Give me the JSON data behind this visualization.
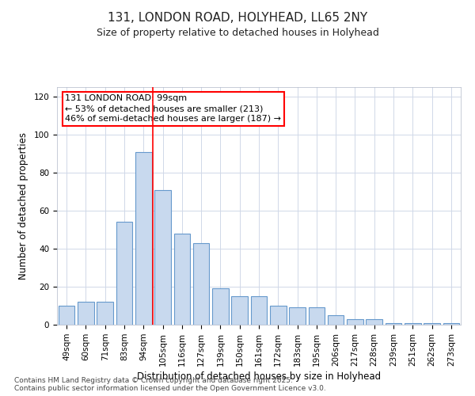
{
  "title": "131, LONDON ROAD, HOLYHEAD, LL65 2NY",
  "subtitle": "Size of property relative to detached houses in Holyhead",
  "xlabel": "Distribution of detached houses by size in Holyhead",
  "ylabel": "Number of detached properties",
  "categories": [
    "49sqm",
    "60sqm",
    "71sqm",
    "83sqm",
    "94sqm",
    "105sqm",
    "116sqm",
    "127sqm",
    "139sqm",
    "150sqm",
    "161sqm",
    "172sqm",
    "183sqm",
    "195sqm",
    "206sqm",
    "217sqm",
    "228sqm",
    "239sqm",
    "251sqm",
    "262sqm",
    "273sqm"
  ],
  "values": [
    10,
    12,
    12,
    54,
    91,
    71,
    48,
    43,
    19,
    15,
    15,
    10,
    9,
    9,
    5,
    3,
    3,
    1,
    1,
    1,
    1
  ],
  "bar_color": "#c8d9ee",
  "bar_edge_color": "#6699cc",
  "grid_color": "#d0d8e8",
  "background_color": "#ffffff",
  "annotation_line1": "131 LONDON ROAD: 99sqm",
  "annotation_line2": "← 53% of detached houses are smaller (213)",
  "annotation_line3": "46% of semi-detached houses are larger (187) →",
  "red_line_x": 4.5,
  "ylim": [
    0,
    125
  ],
  "yticks": [
    0,
    20,
    40,
    60,
    80,
    100,
    120
  ],
  "footer_line1": "Contains HM Land Registry data © Crown copyright and database right 2025.",
  "footer_line2": "Contains public sector information licensed under the Open Government Licence v3.0.",
  "title_fontsize": 11,
  "subtitle_fontsize": 9,
  "axis_label_fontsize": 8.5,
  "tick_fontsize": 7.5,
  "annotation_fontsize": 8,
  "footer_fontsize": 6.5
}
